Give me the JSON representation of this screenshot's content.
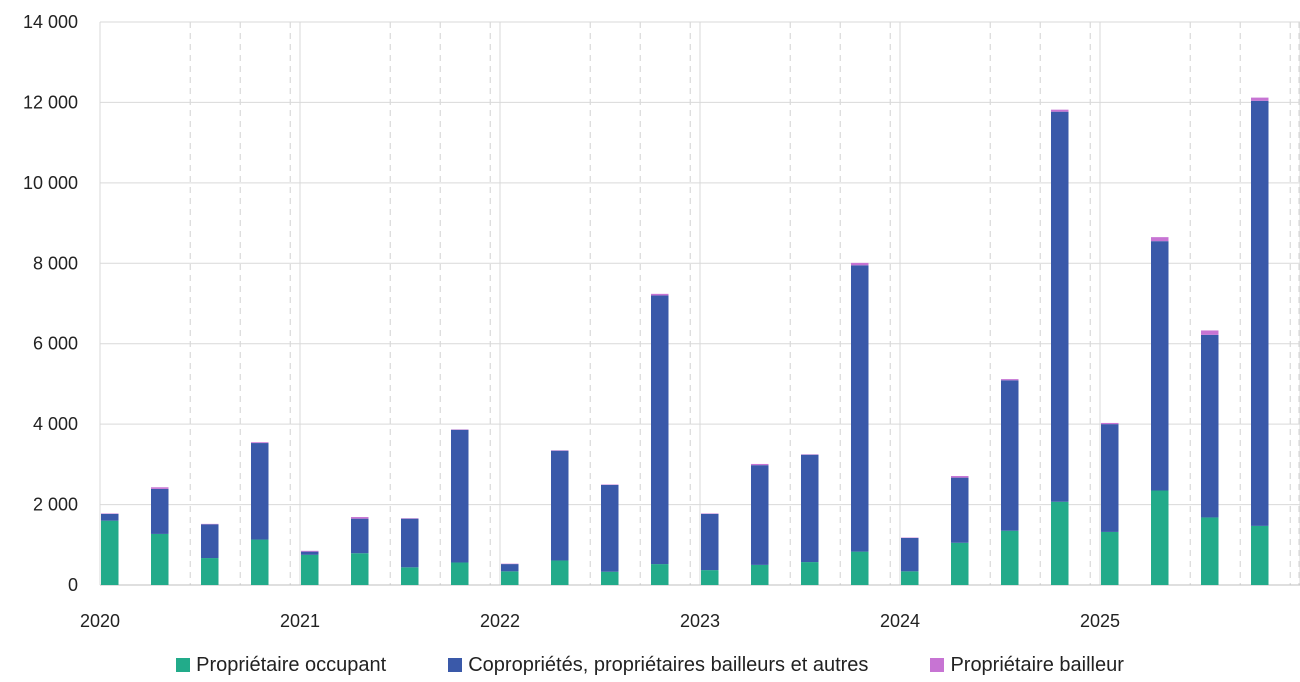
{
  "chart_data": {
    "type": "bar",
    "stacked": true,
    "x_labels": [
      "2020",
      "2021",
      "2022",
      "2023",
      "2024",
      "2025"
    ],
    "categories": [
      "2020-Q1",
      "2020-Q2",
      "2020-Q3",
      "2020-Q4",
      "2021-Q1",
      "2021-Q2",
      "2021-Q3",
      "2021-Q4",
      "2022-Q1",
      "2022-Q2",
      "2022-Q3",
      "2022-Q4",
      "2023-Q1",
      "2023-Q2",
      "2023-Q3",
      "2023-Q4",
      "2024-Q1",
      "2024-Q2",
      "2024-Q3",
      "2024-Q4",
      "2025-Q1",
      "2025-Q2",
      "2025-Q3",
      "2025-Q4"
    ],
    "series": [
      {
        "name": "Propriétaire occupant",
        "color": "#22ab8a",
        "values": [
          1600,
          1270,
          670,
          1130,
          750,
          790,
          440,
          560,
          340,
          610,
          330,
          520,
          370,
          500,
          570,
          830,
          340,
          1050,
          1350,
          2070,
          1320,
          2350,
          1680,
          1470
        ]
      },
      {
        "name": "Copropriétés, propriétaires bailleurs et autres",
        "color": "#3a59a9",
        "values": [
          170,
          1120,
          840,
          2400,
          80,
          860,
          1210,
          3300,
          180,
          2730,
          2160,
          6680,
          1400,
          2480,
          2670,
          7120,
          830,
          1620,
          3740,
          9700,
          2680,
          6200,
          4540,
          10570
        ]
      },
      {
        "name": "Propriétaire bailleur",
        "color": "#c774d3",
        "values": [
          10,
          40,
          10,
          20,
          20,
          40,
          10,
          10,
          10,
          10,
          10,
          40,
          10,
          30,
          10,
          60,
          10,
          40,
          30,
          50,
          30,
          100,
          110,
          80
        ]
      }
    ],
    "y_ticks": [
      "0",
      "2 000",
      "4 000",
      "6 000",
      "8 000",
      "10 000",
      "12 000",
      "14 000"
    ],
    "ylim": [
      0,
      14000
    ],
    "grid": true
  }
}
